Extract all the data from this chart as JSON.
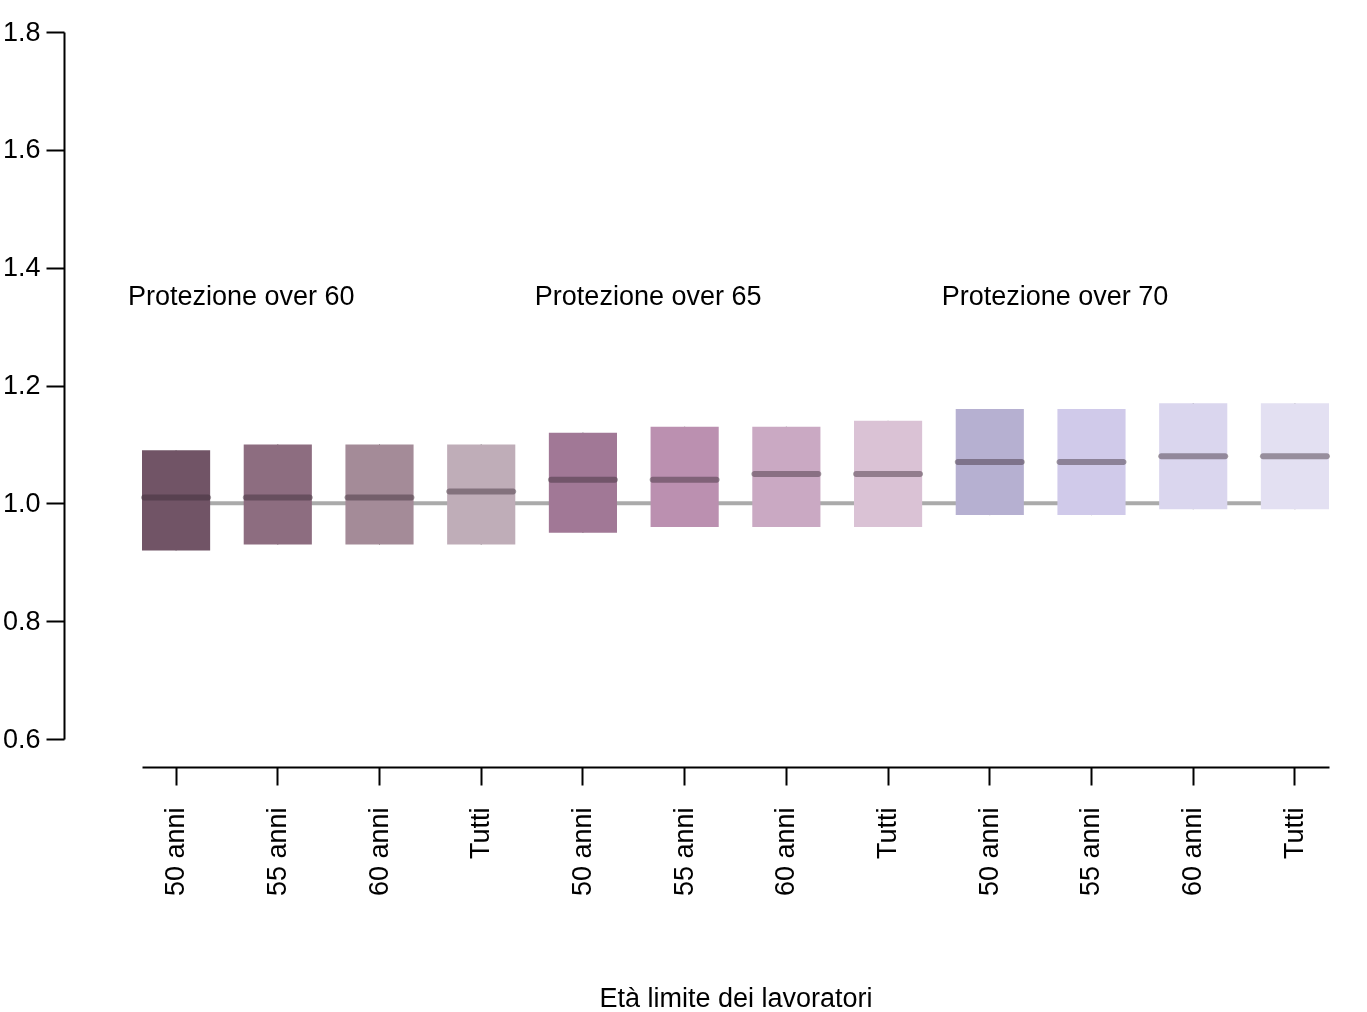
{
  "chart_data": {
    "type": "box",
    "xlabel": "Età limite dei lavoratori",
    "categories": [
      "50 anni",
      "55 anni",
      "60 anni",
      "Tutti",
      "50 anni",
      "55 anni",
      "60 anni",
      "Tutti",
      "50 anni",
      "55 anni",
      "60 anni",
      "Tutti"
    ],
    "boxes": [
      {
        "low": 0.92,
        "q1": 0.92,
        "median": 1.01,
        "q3": 1.09,
        "high": 1.09
      },
      {
        "low": 0.93,
        "q1": 0.93,
        "median": 1.01,
        "q3": 1.1,
        "high": 1.1
      },
      {
        "low": 0.93,
        "q1": 0.93,
        "median": 1.01,
        "q3": 1.1,
        "high": 1.1
      },
      {
        "low": 0.93,
        "q1": 0.93,
        "median": 1.02,
        "q3": 1.1,
        "high": 1.1
      },
      {
        "low": 0.95,
        "q1": 0.95,
        "median": 1.04,
        "q3": 1.12,
        "high": 1.12
      },
      {
        "low": 0.96,
        "q1": 0.96,
        "median": 1.04,
        "q3": 1.13,
        "high": 1.13
      },
      {
        "low": 0.96,
        "q1": 0.96,
        "median": 1.05,
        "q3": 1.13,
        "high": 1.13
      },
      {
        "low": 0.96,
        "q1": 0.96,
        "median": 1.05,
        "q3": 1.14,
        "high": 1.14
      },
      {
        "low": 0.98,
        "q1": 0.98,
        "median": 1.07,
        "q3": 1.16,
        "high": 1.16
      },
      {
        "low": 0.98,
        "q1": 0.98,
        "median": 1.07,
        "q3": 1.16,
        "high": 1.16
      },
      {
        "low": 0.99,
        "q1": 0.99,
        "median": 1.08,
        "q3": 1.17,
        "high": 1.17
      },
      {
        "low": 0.99,
        "q1": 0.99,
        "median": 1.08,
        "q3": 1.17,
        "high": 1.17
      }
    ],
    "colors": [
      "#715466",
      "#8d6d80",
      "#a48b98",
      "#bfadb8",
      "#a17896",
      "#bb90b0",
      "#caa9c3",
      "#dac2d5",
      "#b6b0d1",
      "#d0caea",
      "#dad6ee",
      "#e3e0f2"
    ],
    "ylim": [
      0.6,
      1.8
    ],
    "yticks": [
      0.6,
      0.8,
      {
        "value": 1,
        "label": "1.0"
      },
      1.2,
      1.4,
      1.6,
      1.8
    ],
    "ref_lines": [
      {
        "axis": "y",
        "value": 1.0,
        "color": "#aaaaaa"
      }
    ],
    "annotations": [
      "Protezione over 60",
      "Protezione over 65",
      "Protezione over 70"
    ],
    "grid": false
  }
}
